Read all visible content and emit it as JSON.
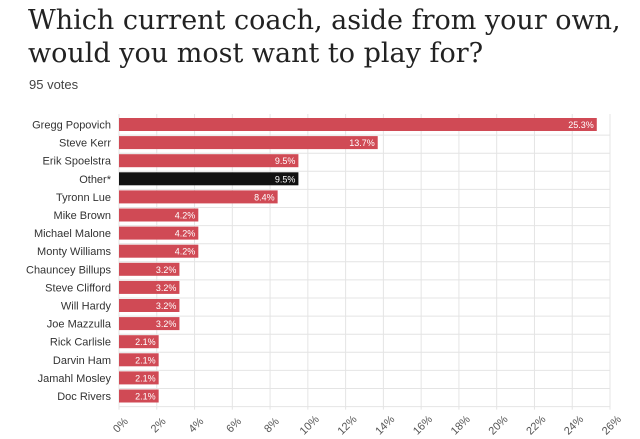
{
  "title": "Which current coach, aside from your own, would you most want to play for?",
  "votes_label": "95 votes",
  "chart_data": {
    "type": "bar",
    "orientation": "horizontal",
    "categories": [
      "Gregg Popovich",
      "Steve Kerr",
      "Erik Spoelstra",
      "Other*",
      "Tyronn Lue",
      "Mike Brown",
      "Michael Malone",
      "Monty Williams",
      "Chauncey Billups",
      "Steve Clifford",
      "Will Hardy",
      "Joe Mazzulla",
      "Rick Carlisle",
      "Darvin Ham",
      "Jamahl Mosley",
      "Doc Rivers"
    ],
    "values": [
      25.3,
      13.7,
      9.5,
      9.5,
      8.4,
      4.2,
      4.2,
      4.2,
      3.2,
      3.2,
      3.2,
      3.2,
      2.1,
      2.1,
      2.1,
      2.1
    ],
    "value_labels": [
      "25.3%",
      "13.7%",
      "9.5%",
      "9.5%",
      "8.4%",
      "4.2%",
      "4.2%",
      "4.2%",
      "3.2%",
      "3.2%",
      "3.2%",
      "3.2%",
      "2.1%",
      "2.1%",
      "2.1%",
      "2.1%"
    ],
    "highlight": [
      false,
      false,
      false,
      true,
      false,
      false,
      false,
      false,
      false,
      false,
      false,
      false,
      false,
      false,
      false,
      false
    ],
    "xticks": [
      0,
      2,
      4,
      6,
      8,
      10,
      12,
      14,
      16,
      18,
      20,
      22,
      24,
      26
    ],
    "xtick_labels": [
      "0%",
      "2%",
      "4%",
      "6%",
      "8%",
      "10%",
      "12%",
      "14%",
      "16%",
      "18%",
      "20%",
      "22%",
      "24%",
      "26%"
    ],
    "xlim": [
      0,
      26
    ],
    "grid": true,
    "colors": {
      "bar": "#d04a55",
      "highlight": "#111111",
      "grid": "#e4e4e4"
    }
  }
}
